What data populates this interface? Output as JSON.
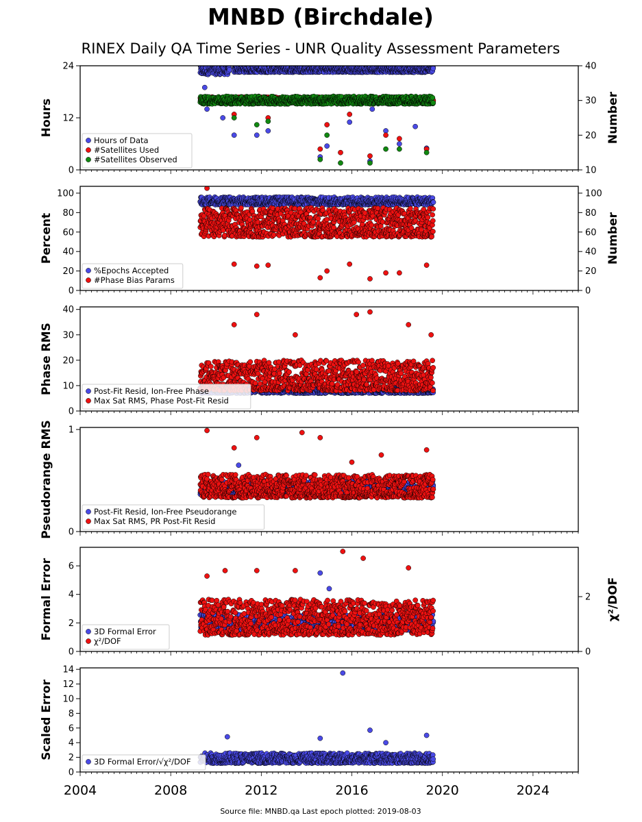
{
  "header": {
    "title": "MNBD (Birchdale)",
    "subtitle": "RINEX Daily QA Time Series - UNR Quality Assessment Parameters"
  },
  "footer": {
    "text": "Source file: MNBD.qa Last epoch plotted: 2019-08-03"
  },
  "colors": {
    "blue": "#4a4ae6",
    "red": "#ee1111",
    "green": "#118811",
    "axis": "#000000"
  },
  "chart_data": [
    {
      "type": "scatter",
      "ylabel": "Hours",
      "y2label": "Number",
      "ylim": [
        0,
        24
      ],
      "y2lim": [
        10,
        40
      ],
      "yticks": [
        "0",
        "12",
        "24"
      ],
      "y2ticks": [
        "10",
        "20",
        "30",
        "40"
      ],
      "xlim": [
        2004,
        2026
      ],
      "legend": {
        "placement": "lower-left",
        "entries": [
          "Hours of Data",
          "#Satellites Used",
          "#Satellites Observed"
        ]
      },
      "series": [
        {
          "name": "Hours of Data",
          "axis": "left",
          "color": "blue",
          "segments": [
            [
              2009.3,
              2010.6,
              22,
              24.0
            ],
            [
              2010.8,
              2019.6,
              22.5,
              24.0
            ]
          ],
          "outliers": [
            [
              2009.5,
              19
            ],
            [
              2009.6,
              14
            ],
            [
              2010.3,
              12
            ],
            [
              2010.8,
              8
            ],
            [
              2011.8,
              8
            ],
            [
              2012.3,
              9
            ],
            [
              2014.6,
              3
            ],
            [
              2014.9,
              5.5
            ],
            [
              2015.9,
              11
            ],
            [
              2016.8,
              2
            ],
            [
              2016.9,
              14
            ],
            [
              2017.5,
              9
            ],
            [
              2018.1,
              6
            ],
            [
              2018.8,
              10
            ],
            [
              2019.3,
              5
            ]
          ]
        },
        {
          "name": "#Satellites Used",
          "axis": "right",
          "color": "red",
          "segments": [
            [
              2009.3,
              2019.6,
              29.5,
              31
            ]
          ],
          "outliers": [
            [
              2010.8,
              26
            ],
            [
              2012.3,
              25
            ],
            [
              2014.6,
              16
            ],
            [
              2014.9,
              23
            ],
            [
              2015.5,
              15
            ],
            [
              2015.9,
              26
            ],
            [
              2016.8,
              14
            ],
            [
              2017.5,
              20
            ],
            [
              2018.1,
              19
            ],
            [
              2019.3,
              16
            ]
          ]
        },
        {
          "name": "#Satellites Observed",
          "axis": "right",
          "color": "green",
          "segments": [
            [
              2009.3,
              2019.6,
              29.0,
              31.2
            ]
          ],
          "outliers": [
            [
              2010.8,
              25
            ],
            [
              2011.8,
              23
            ],
            [
              2012.3,
              24
            ],
            [
              2014.6,
              13
            ],
            [
              2014.9,
              20
            ],
            [
              2015.5,
              12
            ],
            [
              2016.8,
              12
            ],
            [
              2017.5,
              16
            ],
            [
              2018.1,
              16
            ],
            [
              2019.3,
              15
            ]
          ]
        }
      ]
    },
    {
      "type": "scatter",
      "ylabel": "Percent",
      "y2label": "Number",
      "ylim": [
        0,
        107
      ],
      "y2lim": [
        0,
        107
      ],
      "yticks": [
        "0",
        "20",
        "40",
        "60",
        "80",
        "100"
      ],
      "y2ticks": [
        "0",
        "20",
        "40",
        "60",
        "80",
        "100"
      ],
      "xlim": [
        2004,
        2026
      ],
      "legend": {
        "placement": "lower-left",
        "entries": [
          "%Epochs Accepted",
          "#Phase Bias Params"
        ]
      },
      "series": [
        {
          "name": "%Epochs Accepted",
          "axis": "left",
          "color": "blue",
          "segments": [
            [
              2009.3,
              2019.6,
              88,
              96
            ]
          ],
          "outliers": []
        },
        {
          "name": "#Phase Bias Params",
          "axis": "left",
          "color": "red",
          "segments": [
            [
              2009.3,
              2019.6,
              55,
              85
            ]
          ],
          "outliers": [
            [
              2009.6,
              105
            ],
            [
              2010.8,
              27
            ],
            [
              2011.8,
              25
            ],
            [
              2012.3,
              26
            ],
            [
              2014.6,
              13
            ],
            [
              2014.9,
              20
            ],
            [
              2015.9,
              27
            ],
            [
              2016.8,
              12
            ],
            [
              2017.5,
              18
            ],
            [
              2018.1,
              18
            ],
            [
              2019.3,
              26
            ]
          ]
        }
      ]
    },
    {
      "type": "scatter",
      "ylabel": "Phase RMS",
      "ylim": [
        0,
        41
      ],
      "yticks": [
        "0",
        "10",
        "20",
        "30",
        "40"
      ],
      "xlim": [
        2004,
        2026
      ],
      "legend": {
        "placement": "lower-left",
        "entries": [
          "Post-Fit Resid, Ion-Free Phase",
          "Max Sat RMS, Phase Post-Fit Resid"
        ]
      },
      "series": [
        {
          "name": "Post-Fit Resid, Ion-Free Phase",
          "axis": "left",
          "color": "blue",
          "segments": [
            [
              2009.3,
              2019.6,
              7,
              9.5
            ]
          ],
          "outliers": []
        },
        {
          "name": "Max Sat RMS, Phase Post-Fit Resid",
          "axis": "left",
          "color": "red",
          "segments": [
            [
              2009.3,
              2019.6,
              8,
              20
            ]
          ],
          "outliers": [
            [
              2010.8,
              34
            ],
            [
              2011.8,
              38
            ],
            [
              2013.5,
              30
            ],
            [
              2016.2,
              38
            ],
            [
              2016.8,
              39
            ],
            [
              2018.5,
              34
            ],
            [
              2019.5,
              30
            ]
          ]
        }
      ]
    },
    {
      "type": "scatter",
      "ylabel": "Pseudorange RMS",
      "ylim": [
        0,
        1.02
      ],
      "yticks": [
        "0",
        "1"
      ],
      "xlim": [
        2004,
        2026
      ],
      "legend": {
        "placement": "lower-left",
        "entries": [
          "Post-Fit Resid, Ion-Free Pseudorange",
          "Max Sat RMS, PR Post-Fit Resid"
        ]
      },
      "series": [
        {
          "name": "Post-Fit Resid, Ion-Free Pseudorange",
          "axis": "left",
          "color": "blue",
          "segments": [
            [
              2009.3,
              2019.6,
              0.36,
              0.5
            ]
          ],
          "outliers": [
            [
              2011.0,
              0.65
            ]
          ]
        },
        {
          "name": "Max Sat RMS, PR Post-Fit Resid",
          "axis": "left",
          "color": "red",
          "segments": [
            [
              2009.3,
              2019.6,
              0.33,
              0.56
            ]
          ],
          "outliers": [
            [
              2009.6,
              0.99
            ],
            [
              2010.8,
              0.82
            ],
            [
              2011.8,
              0.92
            ],
            [
              2013.8,
              0.97
            ],
            [
              2014.6,
              0.92
            ],
            [
              2016.0,
              0.68
            ],
            [
              2017.3,
              0.75
            ],
            [
              2019.3,
              0.8
            ]
          ]
        }
      ]
    },
    {
      "type": "scatter",
      "ylabel": "Formal Error",
      "y2label": "χ²/DOF",
      "ylim": [
        0,
        7.3
      ],
      "y2lim": [
        0,
        3.8
      ],
      "yticks": [
        "0",
        "2",
        "4",
        "6"
      ],
      "y2ticks": [
        "0",
        "2"
      ],
      "xlim": [
        2004,
        2026
      ],
      "legend": {
        "placement": "lower-left",
        "entries": [
          "3D Formal Error",
          "χ²/DOF"
        ]
      },
      "series": [
        {
          "name": "3D Formal Error",
          "axis": "left",
          "color": "blue",
          "segments": [
            [
              2009.3,
              2019.6,
              1.5,
              2.6
            ]
          ],
          "outliers": [
            [
              2014.6,
              5.5
            ],
            [
              2015.0,
              4.4
            ]
          ]
        },
        {
          "name": "χ²/DOF",
          "axis": "right",
          "color": "red",
          "segments": [
            [
              2009.3,
              2019.6,
              0.6,
              1.9
            ]
          ],
          "outliers": [
            [
              2009.6,
              2.75
            ],
            [
              2010.4,
              2.95
            ],
            [
              2011.8,
              2.95
            ],
            [
              2013.5,
              2.95
            ],
            [
              2015.6,
              3.65
            ],
            [
              2016.5,
              3.4
            ],
            [
              2018.5,
              3.05
            ]
          ]
        }
      ]
    },
    {
      "type": "scatter",
      "ylabel": "Scaled Error",
      "ylim": [
        0,
        14.2
      ],
      "yticks": [
        "0",
        "2",
        "4",
        "6",
        "8",
        "10",
        "12",
        "14"
      ],
      "xlim": [
        2004,
        2026
      ],
      "xticks": [
        "2004",
        "2008",
        "2012",
        "2016",
        "2020",
        "2024"
      ],
      "legend": {
        "placement": "lower-left",
        "entries": [
          "3D Formal Error/√χ²/DOF"
        ]
      },
      "series": [
        {
          "name": "3D Formal Error/√χ²/DOF",
          "axis": "left",
          "color": "blue",
          "segments": [
            [
              2009.3,
              2019.6,
              1.2,
              2.6
            ]
          ],
          "outliers": [
            [
              2010.5,
              4.8
            ],
            [
              2014.6,
              4.6
            ],
            [
              2015.6,
              13.5
            ],
            [
              2016.8,
              5.7
            ],
            [
              2017.5,
              4.0
            ],
            [
              2019.3,
              5.0
            ]
          ]
        }
      ]
    }
  ]
}
